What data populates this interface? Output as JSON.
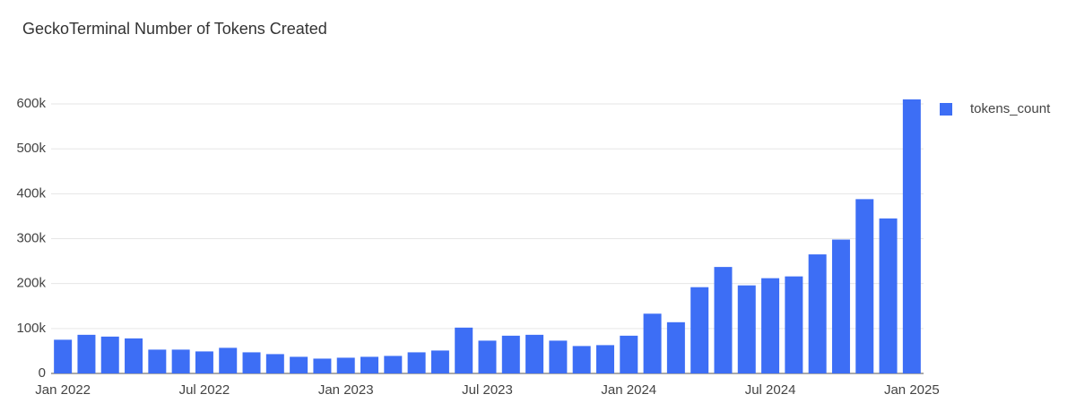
{
  "chart_data": {
    "type": "bar",
    "title": "GeckoTerminal Number of Tokens Created",
    "categories": [
      "Jan 2022",
      null,
      null,
      null,
      null,
      null,
      "Jul 2022",
      null,
      null,
      null,
      null,
      null,
      "Jan 2023",
      null,
      null,
      null,
      null,
      null,
      "Jul 2023",
      null,
      null,
      null,
      null,
      null,
      "Jan 2024",
      null,
      null,
      null,
      null,
      null,
      "Jul 2024",
      null,
      null,
      null,
      null,
      null,
      "Jan 2025"
    ],
    "series": [
      {
        "name": "tokens_count",
        "color": "#3d6ef5",
        "values": [
          75000,
          86000,
          82000,
          78000,
          53000,
          53000,
          49000,
          57000,
          47000,
          43000,
          37000,
          33000,
          35000,
          37000,
          39000,
          47000,
          51000,
          102000,
          73000,
          84000,
          86000,
          73000,
          61000,
          63000,
          84000,
          133000,
          114000,
          192000,
          237000,
          196000,
          212000,
          216000,
          265000,
          298000,
          388000,
          345000,
          610000
        ]
      }
    ],
    "ylim": [
      0,
      620000
    ],
    "yticks": [
      0,
      {
        "value": 100000,
        "label": "100k"
      },
      {
        "value": 200000,
        "label": "200k"
      },
      {
        "value": 300000,
        "label": "300k"
      },
      {
        "value": 400000,
        "label": "400k"
      },
      {
        "value": 500000,
        "label": "500k"
      },
      {
        "value": 600000,
        "label": "600k"
      }
    ],
    "grid": true,
    "legend": "right"
  }
}
